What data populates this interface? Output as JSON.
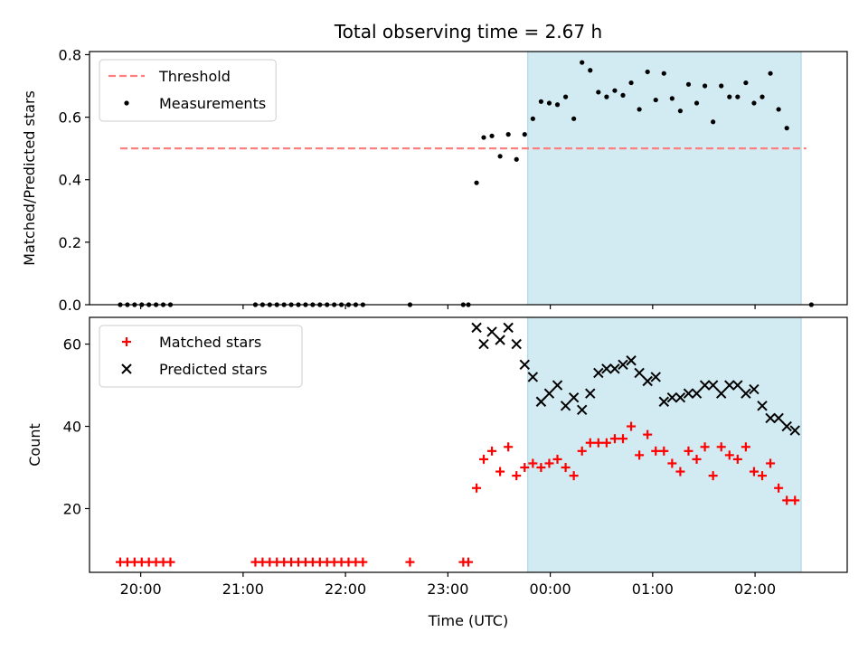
{
  "chart_data": {
    "title": "Total observing time = 2.67 h",
    "xlabel": "Time (UTC)",
    "x_unit": "hours relative to 00:00 UTC",
    "xlim": [
      -4.5,
      2.9
    ],
    "x_ticks": [
      {
        "value": -4,
        "label": "20:00"
      },
      {
        "value": -3,
        "label": "21:00"
      },
      {
        "value": -2,
        "label": "22:00"
      },
      {
        "value": -1,
        "label": "23:00"
      },
      {
        "value": 0,
        "label": "00:00"
      },
      {
        "value": 1,
        "label": "01:00"
      },
      {
        "value": 2,
        "label": "02:00"
      }
    ],
    "observing_window": {
      "start": -0.22,
      "end": 2.45,
      "color": "#add8e6"
    },
    "panels": [
      {
        "type": "scatter",
        "ylabel": "Matched/Predicted stars",
        "ylim": [
          0,
          0.81
        ],
        "y_ticks": [
          "0.0",
          "0.2",
          "0.4",
          "0.6",
          "0.8"
        ],
        "legend": {
          "position": "top-left"
        },
        "threshold": {
          "name": "Threshold",
          "value": 0.5,
          "x_range": [
            -4.2,
            2.5
          ],
          "color": "#ff7f7f",
          "style": "dashed"
        },
        "series": [
          {
            "name": "Measurements",
            "color": "#000000",
            "marker": "dot",
            "points": [
              [
                -4.2,
                0
              ],
              [
                -4.13,
                0
              ],
              [
                -4.06,
                0
              ],
              [
                -3.99,
                0
              ],
              [
                -3.92,
                0
              ],
              [
                -3.85,
                0
              ],
              [
                -3.78,
                0
              ],
              [
                -3.71,
                0
              ],
              [
                -2.88,
                0
              ],
              [
                -2.81,
                0
              ],
              [
                -2.74,
                0
              ],
              [
                -2.67,
                0
              ],
              [
                -2.6,
                0
              ],
              [
                -2.53,
                0
              ],
              [
                -2.46,
                0
              ],
              [
                -2.39,
                0
              ],
              [
                -2.32,
                0
              ],
              [
                -2.25,
                0
              ],
              [
                -2.18,
                0
              ],
              [
                -2.11,
                0
              ],
              [
                -2.04,
                0
              ],
              [
                -1.97,
                0
              ],
              [
                -1.9,
                0
              ],
              [
                -1.83,
                0
              ],
              [
                -1.37,
                0
              ],
              [
                -0.85,
                0
              ],
              [
                -0.8,
                0
              ],
              [
                -0.72,
                0.39
              ],
              [
                -0.65,
                0.535
              ],
              [
                -0.57,
                0.54
              ],
              [
                -0.49,
                0.475
              ],
              [
                -0.41,
                0.545
              ],
              [
                -0.33,
                0.465
              ],
              [
                -0.25,
                0.545
              ],
              [
                -0.17,
                0.595
              ],
              [
                -0.09,
                0.65
              ],
              [
                -0.01,
                0.645
              ],
              [
                0.07,
                0.64
              ],
              [
                0.15,
                0.665
              ],
              [
                0.23,
                0.595
              ],
              [
                0.31,
                0.775
              ],
              [
                0.39,
                0.75
              ],
              [
                0.47,
                0.68
              ],
              [
                0.55,
                0.665
              ],
              [
                0.63,
                0.685
              ],
              [
                0.71,
                0.67
              ],
              [
                0.79,
                0.71
              ],
              [
                0.87,
                0.625
              ],
              [
                0.95,
                0.745
              ],
              [
                1.03,
                0.655
              ],
              [
                1.11,
                0.74
              ],
              [
                1.19,
                0.66
              ],
              [
                1.27,
                0.62
              ],
              [
                1.35,
                0.705
              ],
              [
                1.43,
                0.645
              ],
              [
                1.51,
                0.7
              ],
              [
                1.59,
                0.585
              ],
              [
                1.67,
                0.7
              ],
              [
                1.75,
                0.665
              ],
              [
                1.83,
                0.665
              ],
              [
                1.91,
                0.71
              ],
              [
                1.99,
                0.645
              ],
              [
                2.07,
                0.665
              ],
              [
                2.15,
                0.74
              ],
              [
                2.23,
                0.625
              ],
              [
                2.31,
                0.565
              ],
              [
                2.55,
                0
              ]
            ]
          }
        ]
      },
      {
        "type": "scatter",
        "ylabel": "Count",
        "ylim": [
          4.5,
          66.5
        ],
        "y_ticks": [
          "20",
          "40",
          "60"
        ],
        "legend": {
          "position": "top-left"
        },
        "series": [
          {
            "name": "Matched stars",
            "color": "#ff0000",
            "marker": "plus",
            "points": [
              [
                -4.2,
                7
              ],
              [
                -4.13,
                7
              ],
              [
                -4.06,
                7
              ],
              [
                -3.99,
                7
              ],
              [
                -3.92,
                7
              ],
              [
                -3.85,
                7
              ],
              [
                -3.78,
                7
              ],
              [
                -3.71,
                7
              ],
              [
                -2.88,
                7
              ],
              [
                -2.81,
                7
              ],
              [
                -2.74,
                7
              ],
              [
                -2.67,
                7
              ],
              [
                -2.6,
                7
              ],
              [
                -2.53,
                7
              ],
              [
                -2.46,
                7
              ],
              [
                -2.39,
                7
              ],
              [
                -2.32,
                7
              ],
              [
                -2.25,
                7
              ],
              [
                -2.18,
                7
              ],
              [
                -2.11,
                7
              ],
              [
                -2.04,
                7
              ],
              [
                -1.97,
                7
              ],
              [
                -1.9,
                7
              ],
              [
                -1.83,
                7
              ],
              [
                -1.37,
                7
              ],
              [
                -0.85,
                7
              ],
              [
                -0.8,
                7
              ],
              [
                -0.72,
                25
              ],
              [
                -0.65,
                32
              ],
              [
                -0.57,
                34
              ],
              [
                -0.49,
                29
              ],
              [
                -0.41,
                35
              ],
              [
                -0.33,
                28
              ],
              [
                -0.25,
                30
              ],
              [
                -0.17,
                31
              ],
              [
                -0.09,
                30
              ],
              [
                -0.01,
                31
              ],
              [
                0.07,
                32
              ],
              [
                0.15,
                30
              ],
              [
                0.23,
                28
              ],
              [
                0.31,
                34
              ],
              [
                0.39,
                36
              ],
              [
                0.47,
                36
              ],
              [
                0.55,
                36
              ],
              [
                0.63,
                37
              ],
              [
                0.71,
                37
              ],
              [
                0.79,
                40
              ],
              [
                0.87,
                33
              ],
              [
                0.95,
                38
              ],
              [
                1.03,
                34
              ],
              [
                1.11,
                34
              ],
              [
                1.19,
                31
              ],
              [
                1.27,
                29
              ],
              [
                1.35,
                34
              ],
              [
                1.43,
                32
              ],
              [
                1.51,
                35
              ],
              [
                1.59,
                28
              ],
              [
                1.67,
                35
              ],
              [
                1.75,
                33
              ],
              [
                1.83,
                32
              ],
              [
                1.91,
                35
              ],
              [
                1.99,
                29
              ],
              [
                2.07,
                28
              ],
              [
                2.15,
                31
              ],
              [
                2.23,
                25
              ],
              [
                2.31,
                22
              ],
              [
                2.39,
                22
              ]
            ]
          },
          {
            "name": "Predicted stars",
            "color": "#000000",
            "marker": "x",
            "points": [
              [
                -0.72,
                64
              ],
              [
                -0.65,
                60
              ],
              [
                -0.57,
                63
              ],
              [
                -0.49,
                61
              ],
              [
                -0.41,
                64
              ],
              [
                -0.33,
                60
              ],
              [
                -0.25,
                55
              ],
              [
                -0.17,
                52
              ],
              [
                -0.09,
                46
              ],
              [
                -0.01,
                48
              ],
              [
                0.07,
                50
              ],
              [
                0.15,
                45
              ],
              [
                0.23,
                47
              ],
              [
                0.31,
                44
              ],
              [
                0.39,
                48
              ],
              [
                0.47,
                53
              ],
              [
                0.55,
                54
              ],
              [
                0.63,
                54
              ],
              [
                0.71,
                55
              ],
              [
                0.79,
                56
              ],
              [
                0.87,
                53
              ],
              [
                0.95,
                51
              ],
              [
                1.03,
                52
              ],
              [
                1.11,
                46
              ],
              [
                1.19,
                47
              ],
              [
                1.27,
                47
              ],
              [
                1.35,
                48
              ],
              [
                1.43,
                48
              ],
              [
                1.51,
                50
              ],
              [
                1.59,
                50
              ],
              [
                1.67,
                48
              ],
              [
                1.75,
                50
              ],
              [
                1.83,
                50
              ],
              [
                1.91,
                48
              ],
              [
                1.99,
                49
              ],
              [
                2.07,
                45
              ],
              [
                2.15,
                42
              ],
              [
                2.23,
                42
              ],
              [
                2.31,
                40
              ],
              [
                2.39,
                39
              ]
            ]
          }
        ]
      }
    ]
  }
}
